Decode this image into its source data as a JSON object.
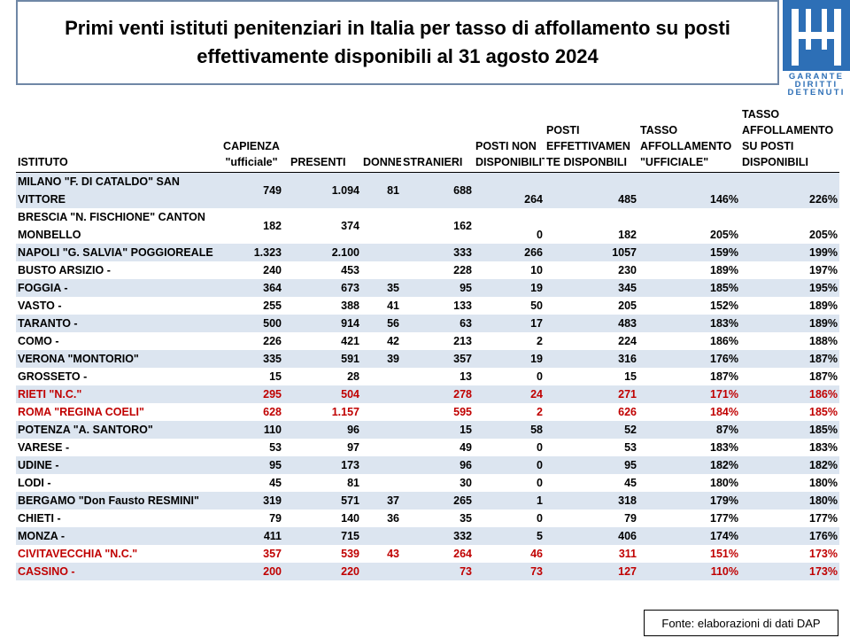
{
  "title": "Primi venti istituti penitenziari in Italia per tasso di affollamento su posti effettivamente disponibili al 31 agosto 2024",
  "logo": {
    "line1": "GARANTE",
    "line2": "DIRITTI",
    "line3": "DETENUTI"
  },
  "headers": {
    "istituto": "ISTITUTO",
    "capienza": "CAPIENZA \"ufficiale\"",
    "presenti": "PRESENTI",
    "donne": "DONNE",
    "stranieri": "STRANIERI",
    "posti_non": "POSTI NON DISPONIBILITE",
    "posti_eff": "POSTI EFFETTIVAMEN TE DISPONBILI",
    "tasso_uff": "TASSO AFFOLLAMENTO \"UFFICIALE\"",
    "tasso_disp": "TASSO AFFOLLAMENTO SU POSTI DISPONIBILI"
  },
  "rows": [
    {
      "istituto": "MILANO \"F. DI CATALDO\" SAN VITTORE",
      "capienza": "749",
      "presenti": "1.094",
      "donne": "81",
      "stranieri": "688",
      "posti_non": "264",
      "posti_eff": "485",
      "tasso_uff": "146%",
      "tasso_disp": "226%",
      "highlight": false
    },
    {
      "istituto": "BRESCIA \"N. FISCHIONE\" CANTON MONBELLO",
      "capienza": "182",
      "presenti": "374",
      "donne": "",
      "stranieri": "162",
      "posti_non": "0",
      "posti_eff": "182",
      "tasso_uff": "205%",
      "tasso_disp": "205%",
      "highlight": false
    },
    {
      "istituto": "NAPOLI \"G. SALVIA\" POGGIOREALE",
      "capienza": "1.323",
      "presenti": "2.100",
      "donne": "",
      "stranieri": "333",
      "posti_non": "266",
      "posti_eff": "1057",
      "tasso_uff": "159%",
      "tasso_disp": "199%",
      "highlight": false
    },
    {
      "istituto": "BUSTO ARSIZIO -",
      "capienza": "240",
      "presenti": "453",
      "donne": "",
      "stranieri": "228",
      "posti_non": "10",
      "posti_eff": "230",
      "tasso_uff": "189%",
      "tasso_disp": "197%",
      "highlight": false
    },
    {
      "istituto": "FOGGIA -",
      "capienza": "364",
      "presenti": "673",
      "donne": "35",
      "stranieri": "95",
      "posti_non": "19",
      "posti_eff": "345",
      "tasso_uff": "185%",
      "tasso_disp": "195%",
      "highlight": false
    },
    {
      "istituto": "VASTO -",
      "capienza": "255",
      "presenti": "388",
      "donne": "41",
      "stranieri": "133",
      "posti_non": "50",
      "posti_eff": "205",
      "tasso_uff": "152%",
      "tasso_disp": "189%",
      "highlight": false
    },
    {
      "istituto": "TARANTO -",
      "capienza": "500",
      "presenti": "914",
      "donne": "56",
      "stranieri": "63",
      "posti_non": "17",
      "posti_eff": "483",
      "tasso_uff": "183%",
      "tasso_disp": "189%",
      "highlight": false
    },
    {
      "istituto": "COMO -",
      "capienza": "226",
      "presenti": "421",
      "donne": "42",
      "stranieri": "213",
      "posti_non": "2",
      "posti_eff": "224",
      "tasso_uff": "186%",
      "tasso_disp": "188%",
      "highlight": false
    },
    {
      "istituto": "VERONA \"MONTORIO\"",
      "capienza": "335",
      "presenti": "591",
      "donne": "39",
      "stranieri": "357",
      "posti_non": "19",
      "posti_eff": "316",
      "tasso_uff": "176%",
      "tasso_disp": "187%",
      "highlight": false
    },
    {
      "istituto": "GROSSETO -",
      "capienza": "15",
      "presenti": "28",
      "donne": "",
      "stranieri": "13",
      "posti_non": "0",
      "posti_eff": "15",
      "tasso_uff": "187%",
      "tasso_disp": "187%",
      "highlight": false
    },
    {
      "istituto": "RIETI \"N.C.\"",
      "capienza": "295",
      "presenti": "504",
      "donne": "",
      "stranieri": "278",
      "posti_non": "24",
      "posti_eff": "271",
      "tasso_uff": "171%",
      "tasso_disp": "186%",
      "highlight": true
    },
    {
      "istituto": "ROMA \"REGINA COELI\"",
      "capienza": "628",
      "presenti": "1.157",
      "donne": "",
      "stranieri": "595",
      "posti_non": "2",
      "posti_eff": "626",
      "tasso_uff": "184%",
      "tasso_disp": "185%",
      "highlight": true
    },
    {
      "istituto": "POTENZA \"A. SANTORO\"",
      "capienza": "110",
      "presenti": "96",
      "donne": "",
      "stranieri": "15",
      "posti_non": "58",
      "posti_eff": "52",
      "tasso_uff": "87%",
      "tasso_disp": "185%",
      "highlight": false
    },
    {
      "istituto": "VARESE -",
      "capienza": "53",
      "presenti": "97",
      "donne": "",
      "stranieri": "49",
      "posti_non": "0",
      "posti_eff": "53",
      "tasso_uff": "183%",
      "tasso_disp": "183%",
      "highlight": false
    },
    {
      "istituto": "UDINE -",
      "capienza": "95",
      "presenti": "173",
      "donne": "",
      "stranieri": "96",
      "posti_non": "0",
      "posti_eff": "95",
      "tasso_uff": "182%",
      "tasso_disp": "182%",
      "highlight": false
    },
    {
      "istituto": "LODI -",
      "capienza": "45",
      "presenti": "81",
      "donne": "",
      "stranieri": "30",
      "posti_non": "0",
      "posti_eff": "45",
      "tasso_uff": "180%",
      "tasso_disp": "180%",
      "highlight": false
    },
    {
      "istituto": "BERGAMO \"Don Fausto RESMINI\"",
      "capienza": "319",
      "presenti": "571",
      "donne": "37",
      "stranieri": "265",
      "posti_non": "1",
      "posti_eff": "318",
      "tasso_uff": "179%",
      "tasso_disp": "180%",
      "highlight": false
    },
    {
      "istituto": "CHIETI -",
      "capienza": "79",
      "presenti": "140",
      "donne": "36",
      "stranieri": "35",
      "posti_non": "0",
      "posti_eff": "79",
      "tasso_uff": "177%",
      "tasso_disp": "177%",
      "highlight": false
    },
    {
      "istituto": "MONZA -",
      "capienza": "411",
      "presenti": "715",
      "donne": "",
      "stranieri": "332",
      "posti_non": "5",
      "posti_eff": "406",
      "tasso_uff": "174%",
      "tasso_disp": "176%",
      "highlight": false
    },
    {
      "istituto": "CIVITAVECCHIA  \"N.C.\"",
      "capienza": "357",
      "presenti": "539",
      "donne": "43",
      "stranieri": "264",
      "posti_non": "46",
      "posti_eff": "311",
      "tasso_uff": "151%",
      "tasso_disp": "173%",
      "highlight": true
    },
    {
      "istituto": "CASSINO -",
      "capienza": "200",
      "presenti": "220",
      "donne": "",
      "stranieri": "73",
      "posti_non": "73",
      "posti_eff": "127",
      "tasso_uff": "110%",
      "tasso_disp": "173%",
      "highlight": true
    }
  ],
  "source": "Fonte: elaborazioni di dati DAP",
  "colors": {
    "row_shade": "#dce5f0",
    "highlight_text": "#c00000",
    "logo_blue": "#2d6fb6"
  }
}
